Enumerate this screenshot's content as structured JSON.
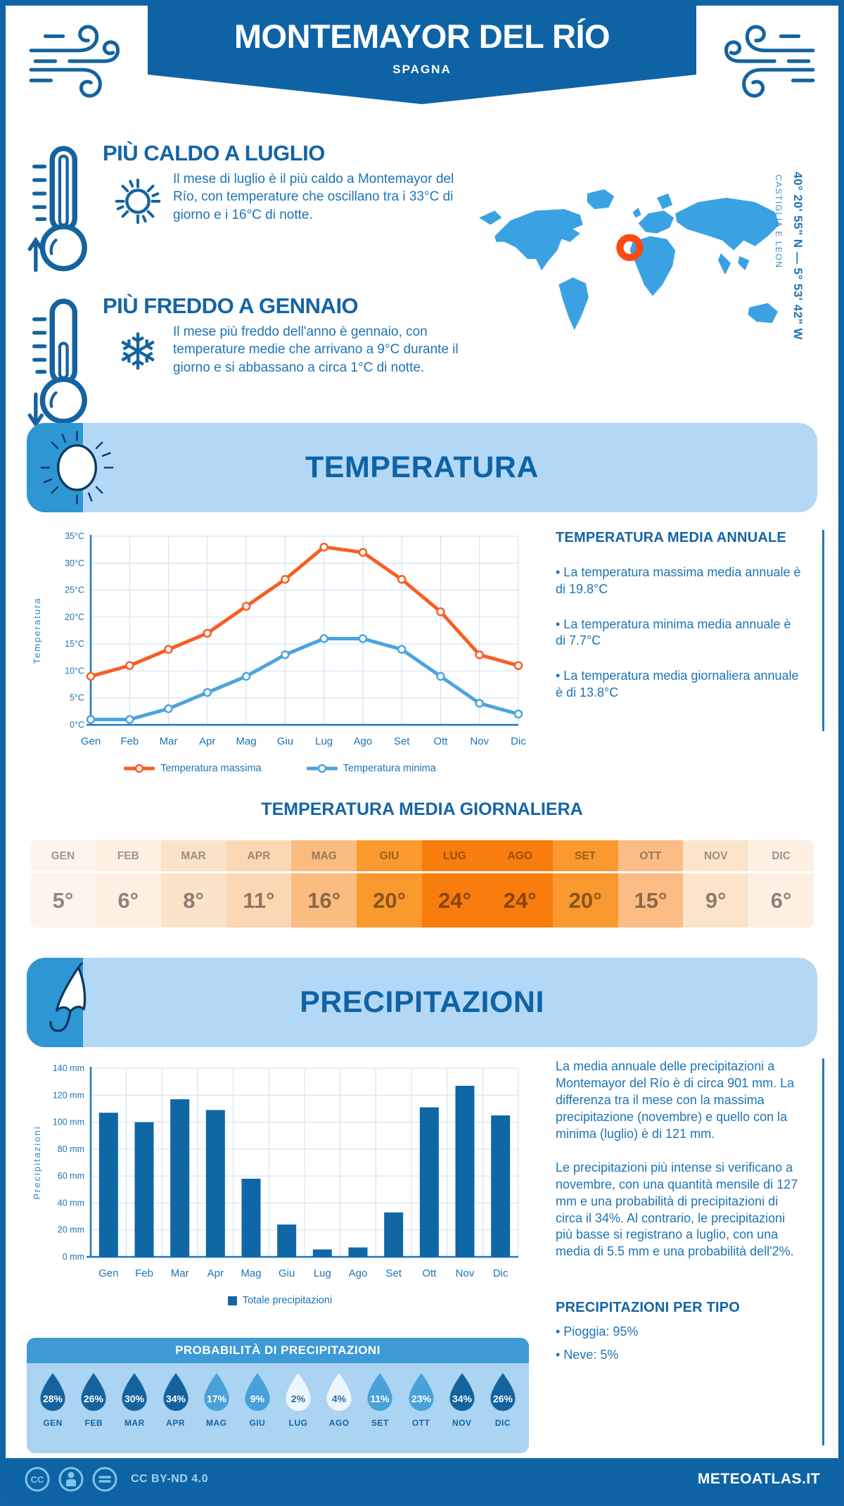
{
  "header": {
    "title": "MONTEMAYOR DEL RÍO",
    "subtitle": "SPAGNA"
  },
  "location": {
    "coordinates": "40° 20' 55\" N — 5° 53' 42\" W",
    "region": "CASTIGLIA E LEON"
  },
  "highlights": {
    "hot": {
      "title": "PIÙ CALDO A LUGLIO",
      "text": "Il mese di luglio è il più caldo a Montemayor del Río, con temperature che oscillano tra i 33°C di giorno e i 16°C di notte."
    },
    "cold": {
      "title": "PIÙ FREDDO A GENNAIO",
      "text": "Il mese più freddo dell'anno è gennaio, con temperature medie che arrivano a 9°C durante il giorno e si abbassano a circa 1°C di notte."
    }
  },
  "sections": {
    "temperature": "TEMPERATURA",
    "precipitation": "PRECIPITAZIONI"
  },
  "annual": {
    "title": "TEMPERATURA MEDIA ANNUALE",
    "bullets": [
      "• La temperatura massima media annuale è di 19.8°C",
      "• La temperatura minima media annuale è di 7.7°C",
      "• La temperatura media giornaliera annuale è di 13.8°C"
    ]
  },
  "daily": {
    "title": "TEMPERATURA MEDIA GIORNALIERA",
    "months": [
      "GEN",
      "FEB",
      "MAR",
      "APR",
      "MAG",
      "GIU",
      "LUG",
      "AGO",
      "SET",
      "OTT",
      "NOV",
      "DIC"
    ],
    "values": [
      "5°",
      "6°",
      "8°",
      "11°",
      "16°",
      "20°",
      "24°",
      "24°",
      "20°",
      "15°",
      "9°",
      "6°"
    ],
    "cell_colors": [
      "#fdf5ec",
      "#fdf0e2",
      "#fbe3c9",
      "#fbd7b3",
      "#fabc81",
      "#f9992e",
      "#f87d0e",
      "#f87d0e",
      "#f9992e",
      "#fbbd85",
      "#fce4cb",
      "#fdf0e2"
    ]
  },
  "precip_text": {
    "para1": "La media annuale delle precipitazioni a Montemayor del Río è di circa 901 mm. La differenza tra il mese con la massima precipitazione (novembre) e quello con la minima (luglio) è di 121 mm.",
    "para2": "Le precipitazioni più intense si verificano a novembre, con una quantità mensile di 127 mm e una probabilità di precipitazioni di circa il 34%. Al contrario, le precipitazioni più basse si registrano a luglio, con una media di 5.5 mm e una probabilità dell'2%."
  },
  "probability": {
    "title": "PROBABILITÀ DI PRECIPITAZIONI",
    "months": [
      "GEN",
      "FEB",
      "MAR",
      "APR",
      "MAG",
      "GIU",
      "LUG",
      "AGO",
      "SET",
      "OTT",
      "NOV",
      "DIC"
    ],
    "values": [
      "28%",
      "26%",
      "30%",
      "34%",
      "17%",
      "9%",
      "2%",
      "4%",
      "11%",
      "23%",
      "34%",
      "26%"
    ],
    "levels": [
      "dark",
      "dark",
      "dark",
      "dark",
      "mid",
      "mid",
      "light",
      "light",
      "mid",
      "mid",
      "dark",
      "dark"
    ],
    "colors": {
      "dark": "#14639f",
      "mid": "#48a1d9",
      "light": "#edf6fd"
    }
  },
  "precip_type": {
    "title": "PRECIPITAZIONI PER TIPO",
    "items": [
      "• Pioggia: 95%",
      "• Neve: 5%"
    ]
  },
  "footer": {
    "license": "CC BY-ND 4.0",
    "site": "METEOATLAS.IT"
  },
  "chart_data": [
    {
      "type": "line",
      "title": "",
      "categories": [
        "Gen",
        "Feb",
        "Mar",
        "Apr",
        "Mag",
        "Giu",
        "Lug",
        "Ago",
        "Set",
        "Ott",
        "Nov",
        "Dic"
      ],
      "series": [
        {
          "name": "Temperatura massima",
          "color": "#f95d24",
          "values": [
            9,
            11,
            14,
            17,
            22,
            27,
            33,
            32,
            27,
            21,
            13,
            11
          ]
        },
        {
          "name": "Temperatura minima",
          "color": "#4ba4dd",
          "values": [
            1,
            1,
            3,
            6,
            9,
            13,
            16,
            16,
            14,
            9,
            4,
            2
          ]
        }
      ],
      "xlabel": "",
      "ylabel": "Temperatura",
      "ylim": [
        0,
        35
      ],
      "ytick_step": 5,
      "yunit": "°C",
      "grid": true,
      "legend_position": "bottom"
    },
    {
      "type": "bar",
      "title": "",
      "categories": [
        "Gen",
        "Feb",
        "Mar",
        "Apr",
        "Mag",
        "Giu",
        "Lug",
        "Ago",
        "Set",
        "Ott",
        "Nov",
        "Dic"
      ],
      "values": [
        107,
        100,
        117,
        109,
        58,
        24,
        5.5,
        7,
        33,
        111,
        127,
        105
      ],
      "series_name": "Totale precipitazioni",
      "color": "#0f67a5",
      "xlabel": "",
      "ylabel": "Precipitazioni",
      "ylim": [
        0,
        140
      ],
      "ytick_step": 20,
      "yunit": " mm",
      "grid": true,
      "legend_position": "bottom"
    }
  ]
}
